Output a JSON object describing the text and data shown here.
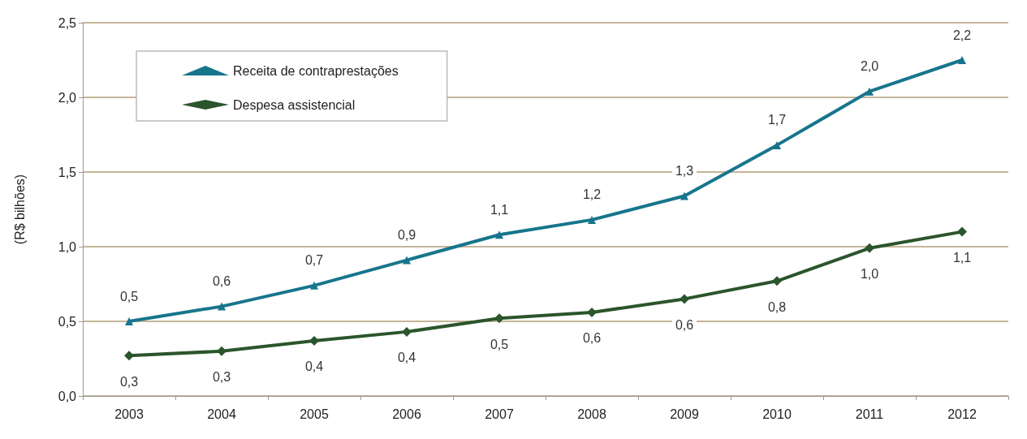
{
  "chart_data": {
    "type": "line",
    "ylabel": "(R$ bilhões)",
    "categories": [
      "2003",
      "2004",
      "2005",
      "2006",
      "2007",
      "2008",
      "2009",
      "2010",
      "2011",
      "2012"
    ],
    "series": [
      {
        "name": "Receita de contraprestações",
        "color": "#17758c",
        "marker": "triangle",
        "values": [
          0.5,
          0.6,
          0.74,
          0.91,
          1.08,
          1.18,
          1.34,
          1.68,
          2.04,
          2.25
        ],
        "value_labels": [
          "0,5",
          "0,6",
          "0,7",
          "0,9",
          "1,1",
          "1,2",
          "1,3",
          "1,7",
          "2,0",
          "2,2"
        ]
      },
      {
        "name": "Despesa assistencial",
        "color": "#2b552b",
        "marker": "diamond",
        "values": [
          0.27,
          0.3,
          0.37,
          0.43,
          0.52,
          0.56,
          0.65,
          0.77,
          0.99,
          1.1
        ],
        "value_labels": [
          "0,3",
          "0,3",
          "0,4",
          "0,4",
          "0,5",
          "0,6",
          "0,6",
          "0,8",
          "1,0",
          "1,1"
        ]
      }
    ],
    "ylim": [
      0,
      2.5
    ],
    "yticks": [
      {
        "value": 0,
        "label": "0,0"
      },
      {
        "value": 0.5,
        "label": "0,5"
      },
      {
        "value": 1,
        "label": "1,0"
      },
      {
        "value": 1.5,
        "label": "1,5"
      },
      {
        "value": 2,
        "label": "2,0"
      },
      {
        "value": 2.5,
        "label": "2,5"
      }
    ],
    "grid": "y",
    "legend": "top left",
    "line_style": "solid"
  }
}
